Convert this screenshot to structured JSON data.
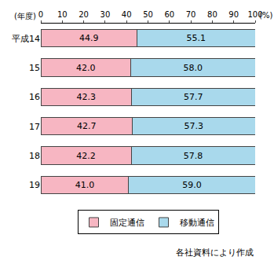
{
  "chart_data": {
    "type": "bar",
    "orientation": "horizontal",
    "stacked": true,
    "data_labels": true,
    "grid": false,
    "legend": "bottom",
    "y_label": "(年度)",
    "x_label": "(%)",
    "annotations": [
      "各社資料により作成"
    ],
    "categories": [
      "平成14",
      "15",
      "16",
      "17",
      "18",
      "19"
    ],
    "xlim": [
      0,
      100
    ],
    "xticks": [
      0,
      10,
      20,
      30,
      40,
      50,
      60,
      70,
      80,
      90,
      100
    ],
    "series": [
      {
        "name": "固定通信",
        "color": "#f7b6c2",
        "values": [
          44.9,
          42.0,
          42.3,
          42.7,
          42.2,
          41.0
        ],
        "value_labels": [
          "44.9",
          "42.0",
          "42.3",
          "42.7",
          "42.2",
          "41.0"
        ]
      },
      {
        "name": "移動通信",
        "color": "#a9d9ec",
        "values": [
          55.1,
          58.0,
          57.7,
          57.3,
          57.8,
          59.0
        ],
        "value_labels": [
          "55.1",
          "58.0",
          "57.7",
          "57.3",
          "57.8",
          "59.0"
        ]
      }
    ]
  }
}
